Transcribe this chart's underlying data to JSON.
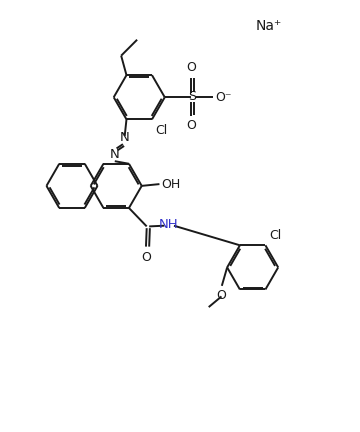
{
  "background_color": "#ffffff",
  "line_color": "#1a1a1a",
  "nh_color": "#3333cc",
  "line_width": 1.4,
  "fig_width": 3.6,
  "fig_height": 4.32,
  "dpi": 100,
  "na_label": "Na⁺",
  "oh_label": "OH",
  "nh_label": "NH",
  "cl_label": "Cl",
  "o_label": "O",
  "o_minus_label": "O⁻",
  "s_label": "S"
}
